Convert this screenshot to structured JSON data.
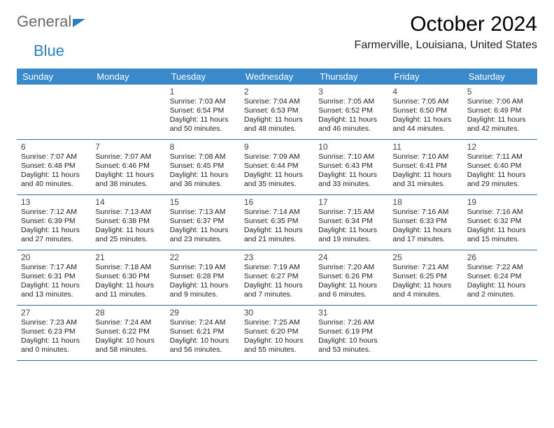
{
  "brand": {
    "part1": "General",
    "part2": "Blue"
  },
  "title": "October 2024",
  "location": "Farmerville, Louisiana, United States",
  "dayHeaders": [
    "Sunday",
    "Monday",
    "Tuesday",
    "Wednesday",
    "Thursday",
    "Friday",
    "Saturday"
  ],
  "colors": {
    "header_bg": "#3a8acb",
    "header_fg": "#ffffff",
    "rule": "#2a6ca3",
    "logo_accent": "#2a7fbf",
    "logo_gray": "#6a6a6a"
  },
  "weeks": [
    [
      {
        "n": "",
        "sr": "",
        "ss": "",
        "dl1": "",
        "dl2": "",
        "empty": true
      },
      {
        "n": "",
        "sr": "",
        "ss": "",
        "dl1": "",
        "dl2": "",
        "empty": true
      },
      {
        "n": "1",
        "sr": "Sunrise: 7:03 AM",
        "ss": "Sunset: 6:54 PM",
        "dl1": "Daylight: 11 hours",
        "dl2": "and 50 minutes."
      },
      {
        "n": "2",
        "sr": "Sunrise: 7:04 AM",
        "ss": "Sunset: 6:53 PM",
        "dl1": "Daylight: 11 hours",
        "dl2": "and 48 minutes."
      },
      {
        "n": "3",
        "sr": "Sunrise: 7:05 AM",
        "ss": "Sunset: 6:52 PM",
        "dl1": "Daylight: 11 hours",
        "dl2": "and 46 minutes."
      },
      {
        "n": "4",
        "sr": "Sunrise: 7:05 AM",
        "ss": "Sunset: 6:50 PM",
        "dl1": "Daylight: 11 hours",
        "dl2": "and 44 minutes."
      },
      {
        "n": "5",
        "sr": "Sunrise: 7:06 AM",
        "ss": "Sunset: 6:49 PM",
        "dl1": "Daylight: 11 hours",
        "dl2": "and 42 minutes."
      }
    ],
    [
      {
        "n": "6",
        "sr": "Sunrise: 7:07 AM",
        "ss": "Sunset: 6:48 PM",
        "dl1": "Daylight: 11 hours",
        "dl2": "and 40 minutes."
      },
      {
        "n": "7",
        "sr": "Sunrise: 7:07 AM",
        "ss": "Sunset: 6:46 PM",
        "dl1": "Daylight: 11 hours",
        "dl2": "and 38 minutes."
      },
      {
        "n": "8",
        "sr": "Sunrise: 7:08 AM",
        "ss": "Sunset: 6:45 PM",
        "dl1": "Daylight: 11 hours",
        "dl2": "and 36 minutes."
      },
      {
        "n": "9",
        "sr": "Sunrise: 7:09 AM",
        "ss": "Sunset: 6:44 PM",
        "dl1": "Daylight: 11 hours",
        "dl2": "and 35 minutes."
      },
      {
        "n": "10",
        "sr": "Sunrise: 7:10 AM",
        "ss": "Sunset: 6:43 PM",
        "dl1": "Daylight: 11 hours",
        "dl2": "and 33 minutes."
      },
      {
        "n": "11",
        "sr": "Sunrise: 7:10 AM",
        "ss": "Sunset: 6:41 PM",
        "dl1": "Daylight: 11 hours",
        "dl2": "and 31 minutes."
      },
      {
        "n": "12",
        "sr": "Sunrise: 7:11 AM",
        "ss": "Sunset: 6:40 PM",
        "dl1": "Daylight: 11 hours",
        "dl2": "and 29 minutes."
      }
    ],
    [
      {
        "n": "13",
        "sr": "Sunrise: 7:12 AM",
        "ss": "Sunset: 6:39 PM",
        "dl1": "Daylight: 11 hours",
        "dl2": "and 27 minutes."
      },
      {
        "n": "14",
        "sr": "Sunrise: 7:13 AM",
        "ss": "Sunset: 6:38 PM",
        "dl1": "Daylight: 11 hours",
        "dl2": "and 25 minutes."
      },
      {
        "n": "15",
        "sr": "Sunrise: 7:13 AM",
        "ss": "Sunset: 6:37 PM",
        "dl1": "Daylight: 11 hours",
        "dl2": "and 23 minutes."
      },
      {
        "n": "16",
        "sr": "Sunrise: 7:14 AM",
        "ss": "Sunset: 6:35 PM",
        "dl1": "Daylight: 11 hours",
        "dl2": "and 21 minutes."
      },
      {
        "n": "17",
        "sr": "Sunrise: 7:15 AM",
        "ss": "Sunset: 6:34 PM",
        "dl1": "Daylight: 11 hours",
        "dl2": "and 19 minutes."
      },
      {
        "n": "18",
        "sr": "Sunrise: 7:16 AM",
        "ss": "Sunset: 6:33 PM",
        "dl1": "Daylight: 11 hours",
        "dl2": "and 17 minutes."
      },
      {
        "n": "19",
        "sr": "Sunrise: 7:16 AM",
        "ss": "Sunset: 6:32 PM",
        "dl1": "Daylight: 11 hours",
        "dl2": "and 15 minutes."
      }
    ],
    [
      {
        "n": "20",
        "sr": "Sunrise: 7:17 AM",
        "ss": "Sunset: 6:31 PM",
        "dl1": "Daylight: 11 hours",
        "dl2": "and 13 minutes."
      },
      {
        "n": "21",
        "sr": "Sunrise: 7:18 AM",
        "ss": "Sunset: 6:30 PM",
        "dl1": "Daylight: 11 hours",
        "dl2": "and 11 minutes."
      },
      {
        "n": "22",
        "sr": "Sunrise: 7:19 AM",
        "ss": "Sunset: 6:28 PM",
        "dl1": "Daylight: 11 hours",
        "dl2": "and 9 minutes."
      },
      {
        "n": "23",
        "sr": "Sunrise: 7:19 AM",
        "ss": "Sunset: 6:27 PM",
        "dl1": "Daylight: 11 hours",
        "dl2": "and 7 minutes."
      },
      {
        "n": "24",
        "sr": "Sunrise: 7:20 AM",
        "ss": "Sunset: 6:26 PM",
        "dl1": "Daylight: 11 hours",
        "dl2": "and 6 minutes."
      },
      {
        "n": "25",
        "sr": "Sunrise: 7:21 AM",
        "ss": "Sunset: 6:25 PM",
        "dl1": "Daylight: 11 hours",
        "dl2": "and 4 minutes."
      },
      {
        "n": "26",
        "sr": "Sunrise: 7:22 AM",
        "ss": "Sunset: 6:24 PM",
        "dl1": "Daylight: 11 hours",
        "dl2": "and 2 minutes."
      }
    ],
    [
      {
        "n": "27",
        "sr": "Sunrise: 7:23 AM",
        "ss": "Sunset: 6:23 PM",
        "dl1": "Daylight: 11 hours",
        "dl2": "and 0 minutes."
      },
      {
        "n": "28",
        "sr": "Sunrise: 7:24 AM",
        "ss": "Sunset: 6:22 PM",
        "dl1": "Daylight: 10 hours",
        "dl2": "and 58 minutes."
      },
      {
        "n": "29",
        "sr": "Sunrise: 7:24 AM",
        "ss": "Sunset: 6:21 PM",
        "dl1": "Daylight: 10 hours",
        "dl2": "and 56 minutes."
      },
      {
        "n": "30",
        "sr": "Sunrise: 7:25 AM",
        "ss": "Sunset: 6:20 PM",
        "dl1": "Daylight: 10 hours",
        "dl2": "and 55 minutes."
      },
      {
        "n": "31",
        "sr": "Sunrise: 7:26 AM",
        "ss": "Sunset: 6:19 PM",
        "dl1": "Daylight: 10 hours",
        "dl2": "and 53 minutes."
      },
      {
        "n": "",
        "sr": "",
        "ss": "",
        "dl1": "",
        "dl2": "",
        "empty": true
      },
      {
        "n": "",
        "sr": "",
        "ss": "",
        "dl1": "",
        "dl2": "",
        "empty": true
      }
    ]
  ]
}
